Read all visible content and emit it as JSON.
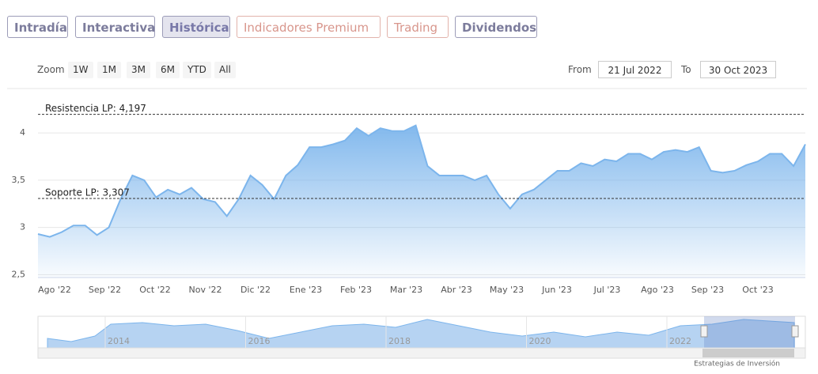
{
  "tabs": [
    "Intradía",
    "Interactiva",
    "Histórica",
    "Indicadores Premium",
    "Trading",
    "Dividendos"
  ],
  "zoom": {
    "label": "Zoom",
    "buttons": [
      "1W",
      "1M",
      "3M",
      "6M",
      "YTD",
      "All"
    ]
  },
  "range": {
    "from_label": "From",
    "from": "21 Jul 2022",
    "to_label": "To",
    "to": "30 Oct 2023"
  },
  "chart_data": {
    "type": "area",
    "color": "#7cb5ec",
    "values": [
      2.93,
      2.9,
      2.95,
      3.02,
      3.02,
      2.92,
      3.0,
      3.3,
      3.55,
      3.5,
      3.32,
      3.4,
      3.35,
      3.42,
      3.3,
      3.27,
      3.12,
      3.3,
      3.55,
      3.45,
      3.3,
      3.55,
      3.66,
      3.85,
      3.85,
      3.88,
      3.92,
      4.05,
      3.97,
      4.05,
      4.02,
      4.02,
      4.08,
      3.65,
      3.55,
      3.55,
      3.55,
      3.5,
      3.55,
      3.35,
      3.2,
      3.35,
      3.4,
      3.5,
      3.6,
      3.6,
      3.68,
      3.65,
      3.72,
      3.7,
      3.78,
      3.78,
      3.72,
      3.8,
      3.82,
      3.8,
      3.85,
      3.6,
      3.58,
      3.6,
      3.66,
      3.7,
      3.78,
      3.78,
      3.65,
      3.88
    ],
    "x_labels": [
      "Ago '22",
      "Sep '22",
      "Oct '22",
      "Nov '22",
      "Dic '22",
      "Ene '23",
      "Feb '23",
      "Mar '23",
      "Abr '23",
      "May '23",
      "Jun '23",
      "Jul '23",
      "Ago '23",
      "Sep '23",
      "Oct '23"
    ],
    "ylim": [
      2.47,
      4.47
    ],
    "yticks": [
      {
        "value": 2.5,
        "label": "2,5"
      },
      3,
      {
        "value": 3.5,
        "label": "3,5"
      },
      4
    ],
    "grid": true,
    "annotations": [
      {
        "label": "Resistencia LP: 4,197",
        "value": 4.197
      },
      {
        "label": "Soporte LP: 3,307",
        "value": 3.307
      }
    ]
  },
  "navigator": {
    "labels": [
      "2014",
      "2016",
      "2018",
      "2020",
      "2022"
    ]
  },
  "credit": "Estrategias de Inversión"
}
